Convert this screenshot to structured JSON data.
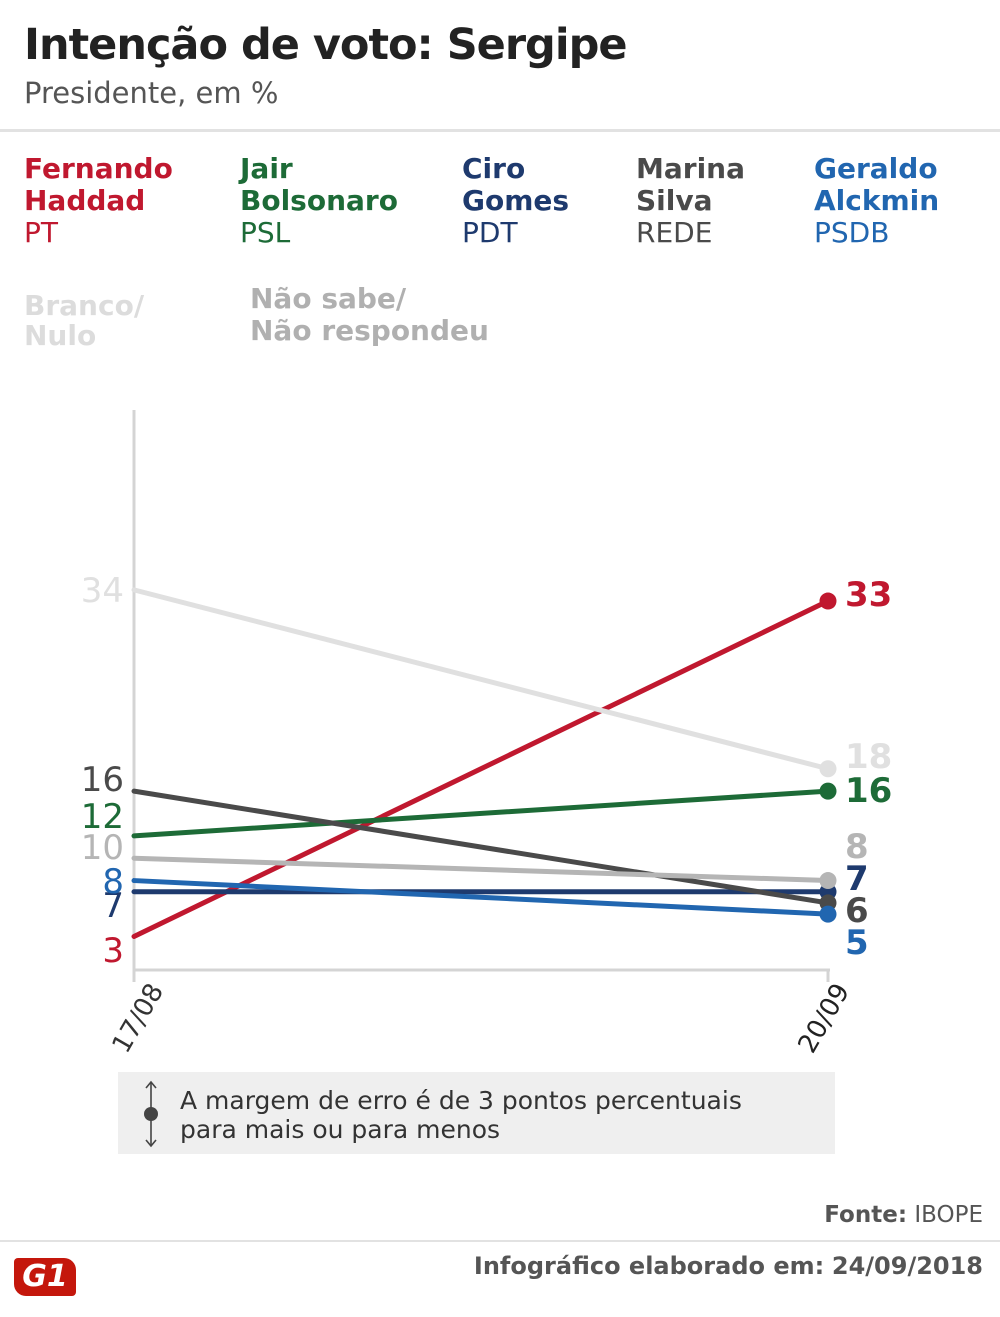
{
  "header": {
    "title": "Intenção de voto: Sergipe",
    "subtitle": "Presidente, em %"
  },
  "legend": [
    {
      "line1": "Fernando",
      "line2": "Haddad",
      "party": "PT",
      "color": "#c0182f"
    },
    {
      "line1": "Jair",
      "line2": "Bolsonaro",
      "party": "PSL",
      "color": "#1d6b37"
    },
    {
      "line1": "Ciro",
      "line2": "Gomes",
      "party": "PDT",
      "color": "#1e3a6e"
    },
    {
      "line1": "Marina",
      "line2": "Silva",
      "party": "REDE",
      "color": "#4a4a4a"
    },
    {
      "line1": "Geraldo",
      "line2": "Alckmin",
      "party": "PSDB",
      "color": "#2166b0"
    },
    {
      "line1": "Branco/",
      "line2": "Nulo",
      "party": "",
      "color": "#e0e0e0"
    },
    {
      "line1": "Não sabe/",
      "line2": "Não respondeu",
      "party": "",
      "color": "#b5b5b5"
    }
  ],
  "chart_data": {
    "type": "line",
    "x": [
      "17/08",
      "20/09"
    ],
    "ylim": [
      0,
      40
    ],
    "series": [
      {
        "name": "Fernando Haddad",
        "values": [
          3,
          33
        ],
        "color": "#c0182f"
      },
      {
        "name": "Jair Bolsonaro",
        "values": [
          12,
          16
        ],
        "color": "#1d6b37"
      },
      {
        "name": "Ciro Gomes",
        "values": [
          7,
          7
        ],
        "color": "#1e3a6e"
      },
      {
        "name": "Marina Silva",
        "values": [
          16,
          6
        ],
        "color": "#4a4a4a"
      },
      {
        "name": "Geraldo Alckmin",
        "values": [
          8,
          5
        ],
        "color": "#2166b0"
      },
      {
        "name": "Branco/Nulo",
        "values": [
          34,
          18
        ],
        "color": "#e0e0e0"
      },
      {
        "name": "Não sabe/Não respondeu",
        "values": [
          10,
          8
        ],
        "color": "#b5b5b5"
      }
    ]
  },
  "note": {
    "line1": "A margem de erro é de 3 pontos percentuais",
    "line2": "para mais ou para menos"
  },
  "footer": {
    "source_label": "Fonte:",
    "source_value": "IBOPE",
    "date_label": "Infográfico elaborado em:",
    "date_value": "24/09/2018",
    "logo": "G1"
  }
}
